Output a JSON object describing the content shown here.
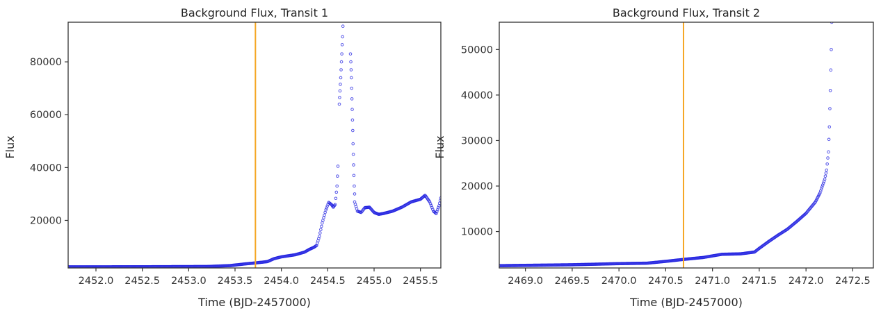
{
  "chart_data": [
    {
      "type": "scatter",
      "title": "Background Flux, Transit 1",
      "xlabel": "Time (BJD-2457000)",
      "ylabel": "Flux",
      "xlim": [
        2451.7,
        2455.72
      ],
      "ylim": [
        2000,
        95000
      ],
      "xticks": [
        "2452.0",
        "2452.5",
        "2453.0",
        "2453.5",
        "2454.0",
        "2454.5",
        "2455.0",
        "2455.5"
      ],
      "yticks": [
        "20000",
        "40000",
        "60000",
        "80000"
      ],
      "marker_color": "#1f1fe0",
      "vline": {
        "x": 2453.72,
        "color": "#f5a623"
      },
      "grid": false,
      "legend": "none",
      "curve": [
        [
          2451.7,
          2400
        ],
        [
          2452.5,
          2450
        ],
        [
          2453.2,
          2550
        ],
        [
          2453.45,
          2900
        ],
        [
          2453.6,
          3500
        ],
        [
          2453.72,
          3900
        ],
        [
          2453.85,
          4400
        ],
        [
          2453.92,
          5500
        ],
        [
          2454.0,
          6200
        ],
        [
          2454.15,
          7000
        ],
        [
          2454.25,
          8000
        ],
        [
          2454.3,
          9000
        ],
        [
          2454.35,
          9800
        ],
        [
          2454.38,
          10500
        ],
        [
          2454.41,
          14000
        ],
        [
          2454.44,
          19000
        ],
        [
          2454.48,
          24000
        ],
        [
          2454.51,
          26800
        ],
        [
          2454.54,
          26000
        ],
        [
          2454.56,
          25000
        ],
        [
          2454.58,
          26000
        ],
        [
          2454.6,
          33000
        ],
        [
          2454.61,
          40500
        ]
      ],
      "spike1": [
        [
          2454.625,
          64000
        ],
        [
          2454.628,
          66500
        ],
        [
          2454.632,
          69000
        ],
        [
          2454.636,
          71500
        ],
        [
          2454.64,
          74000
        ],
        [
          2454.644,
          77000
        ],
        [
          2454.648,
          80000
        ],
        [
          2454.652,
          83000
        ],
        [
          2454.656,
          86500
        ],
        [
          2454.66,
          89500
        ],
        [
          2454.664,
          93500
        ],
        [
          2454.668,
          97000
        ]
      ],
      "spike2": [
        [
          2454.745,
          83000
        ],
        [
          2454.749,
          80000
        ],
        [
          2454.752,
          77000
        ],
        [
          2454.755,
          74000
        ],
        [
          2454.758,
          70000
        ],
        [
          2454.761,
          66000
        ],
        [
          2454.764,
          62000
        ],
        [
          2454.767,
          58000
        ],
        [
          2454.77,
          54000
        ],
        [
          2454.773,
          49000
        ],
        [
          2454.776,
          45000
        ],
        [
          2454.779,
          41000
        ],
        [
          2454.782,
          37000
        ],
        [
          2454.786,
          33000
        ],
        [
          2454.79,
          30000
        ]
      ],
      "tail": [
        [
          2454.79,
          27000
        ],
        [
          2454.82,
          23500
        ],
        [
          2454.86,
          23000
        ],
        [
          2454.9,
          24800
        ],
        [
          2454.95,
          25000
        ],
        [
          2455.0,
          23000
        ],
        [
          2455.05,
          22300
        ],
        [
          2455.1,
          22600
        ],
        [
          2455.2,
          23500
        ],
        [
          2455.3,
          25000
        ],
        [
          2455.4,
          27000
        ],
        [
          2455.5,
          28000
        ],
        [
          2455.55,
          29500
        ],
        [
          2455.6,
          27000
        ],
        [
          2455.64,
          23500
        ],
        [
          2455.67,
          22600
        ],
        [
          2455.7,
          25500
        ],
        [
          2455.72,
          28500
        ]
      ]
    },
    {
      "type": "scatter",
      "title": "Background Flux, Transit 2",
      "xlabel": "Time (BJD-2457000)",
      "ylabel": "Flux",
      "xlim": [
        2468.72,
        2472.72
      ],
      "ylim": [
        2000,
        56000
      ],
      "xticks": [
        "2469.0",
        "2469.5",
        "2470.0",
        "2470.5",
        "2471.0",
        "2471.5",
        "2472.0",
        "2472.5"
      ],
      "yticks": [
        "10000",
        "20000",
        "30000",
        "40000",
        "50000"
      ],
      "marker_color": "#1f1fe0",
      "vline": {
        "x": 2470.69,
        "color": "#f5a623"
      },
      "grid": false,
      "legend": "none",
      "curve": [
        [
          2468.72,
          2500
        ],
        [
          2469.5,
          2700
        ],
        [
          2470.0,
          2950
        ],
        [
          2470.3,
          3050
        ],
        [
          2470.5,
          3450
        ],
        [
          2470.7,
          3900
        ],
        [
          2470.9,
          4300
        ],
        [
          2471.1,
          5000
        ],
        [
          2471.3,
          5100
        ],
        [
          2471.45,
          5500
        ],
        [
          2471.5,
          6300
        ],
        [
          2471.6,
          7800
        ],
        [
          2471.7,
          9200
        ],
        [
          2471.8,
          10500
        ],
        [
          2471.9,
          12200
        ],
        [
          2472.0,
          14000
        ],
        [
          2472.1,
          16500
        ],
        [
          2472.15,
          18500
        ],
        [
          2472.2,
          21500
        ],
        [
          2472.22,
          23500
        ],
        [
          2472.24,
          27500
        ],
        [
          2472.25,
          33000
        ],
        [
          2472.26,
          41000
        ],
        [
          2472.27,
          50000
        ],
        [
          2472.275,
          56000
        ]
      ]
    }
  ]
}
